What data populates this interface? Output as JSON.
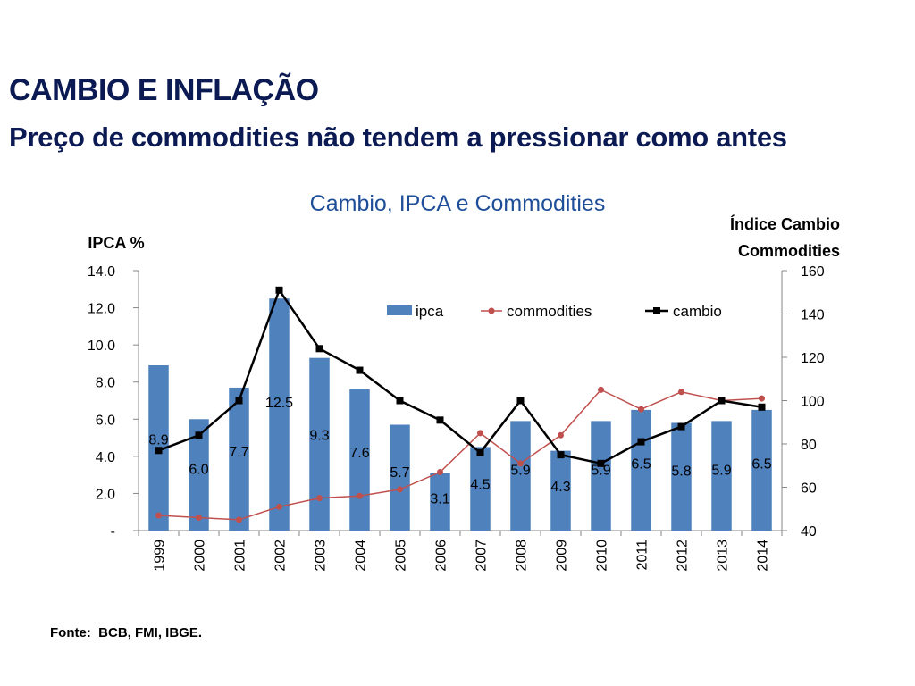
{
  "slide": {
    "title": "CAMBIO E INFLAÇÃO",
    "subtitle": "Preço de commodities não tendem a pressionar como antes",
    "source": "Fonte:  BCB, FMI, IBGE."
  },
  "chart_data": {
    "type": "bar",
    "title": "Cambio, IPCA e Commodities",
    "ylabel": "IPCA %",
    "y2label_lines": [
      "Índice  Cambio",
      "Commodities"
    ],
    "categories": [
      "1999",
      "2000",
      "2001",
      "2002",
      "2003",
      "2004",
      "2005",
      "2006",
      "2007",
      "2008",
      "2009",
      "2010",
      "2011",
      "2012",
      "2013",
      "2014"
    ],
    "ylim": [
      0,
      14
    ],
    "y_ticks": [
      0,
      2,
      4,
      6,
      8,
      10,
      12,
      14
    ],
    "y_tick_labels": [
      "-",
      "2.0",
      "4.0",
      "6.0",
      "8.0",
      "10.0",
      "12.0",
      "14.0"
    ],
    "y2lim": [
      40,
      160
    ],
    "y2_ticks": [
      40,
      60,
      80,
      100,
      120,
      140,
      160
    ],
    "y2_tick_labels": [
      "40",
      "60",
      "80",
      "100",
      "120",
      "140",
      "160"
    ],
    "legend_position": "top-right",
    "series": [
      {
        "name": "ipca",
        "type": "bar",
        "axis": "left",
        "color": "#4f81bd",
        "values": [
          8.9,
          6.0,
          7.7,
          12.5,
          9.3,
          7.6,
          5.7,
          3.1,
          4.5,
          5.9,
          4.3,
          5.9,
          6.5,
          5.8,
          5.9,
          6.5
        ],
        "labels": [
          "8.9",
          "6.0",
          "7.7",
          "12.5",
          "9.3",
          "7.6",
          "5.7",
          "3.1",
          "4.5",
          "5.9",
          "4.3",
          "5.9",
          "6.5",
          "5.8",
          "5.9",
          "6.5"
        ]
      },
      {
        "name": "commodities",
        "type": "line",
        "axis": "right",
        "color": "#c0504d",
        "values": [
          47,
          46,
          45,
          51,
          55,
          56,
          59,
          67,
          85,
          71,
          84,
          105,
          96,
          104,
          100,
          101
        ]
      },
      {
        "name": "cambio",
        "type": "line",
        "axis": "right",
        "color": "#000000",
        "values": [
          77,
          84,
          100,
          151,
          124,
          114,
          100,
          91,
          76,
          100,
          75,
          71,
          81,
          88,
          100,
          97
        ]
      }
    ]
  }
}
